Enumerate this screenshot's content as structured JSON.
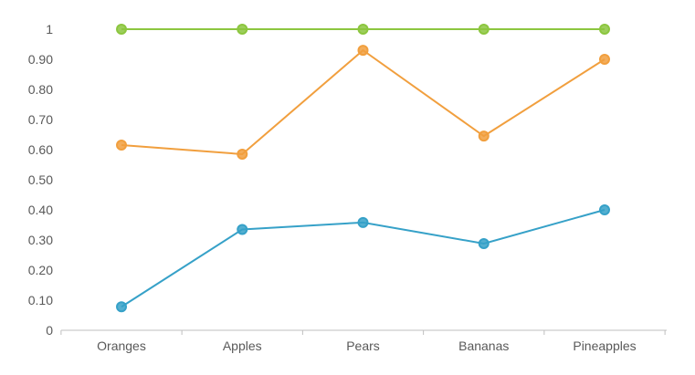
{
  "chart_data": {
    "type": "line",
    "categories": [
      "Oranges",
      "Apples",
      "Pears",
      "Bananas",
      "Pineapples"
    ],
    "y_ticks": [
      "0",
      "0.10",
      "0.20",
      "0.30",
      "0.40",
      "0.50",
      "0.60",
      "0.70",
      "0.80",
      "0.90",
      "1"
    ],
    "ylim": [
      0,
      1
    ],
    "grid": false,
    "legend": "none",
    "series": [
      {
        "color": "#8cc63f",
        "values": [
          1.0,
          1.0,
          1.0,
          1.0,
          1.0
        ]
      },
      {
        "color": "#f19f3e",
        "values": [
          0.615,
          0.585,
          0.93,
          0.645,
          0.9
        ]
      },
      {
        "color": "#36a1c8",
        "values": [
          0.078,
          0.335,
          0.358,
          0.288,
          0.4
        ]
      }
    ]
  }
}
